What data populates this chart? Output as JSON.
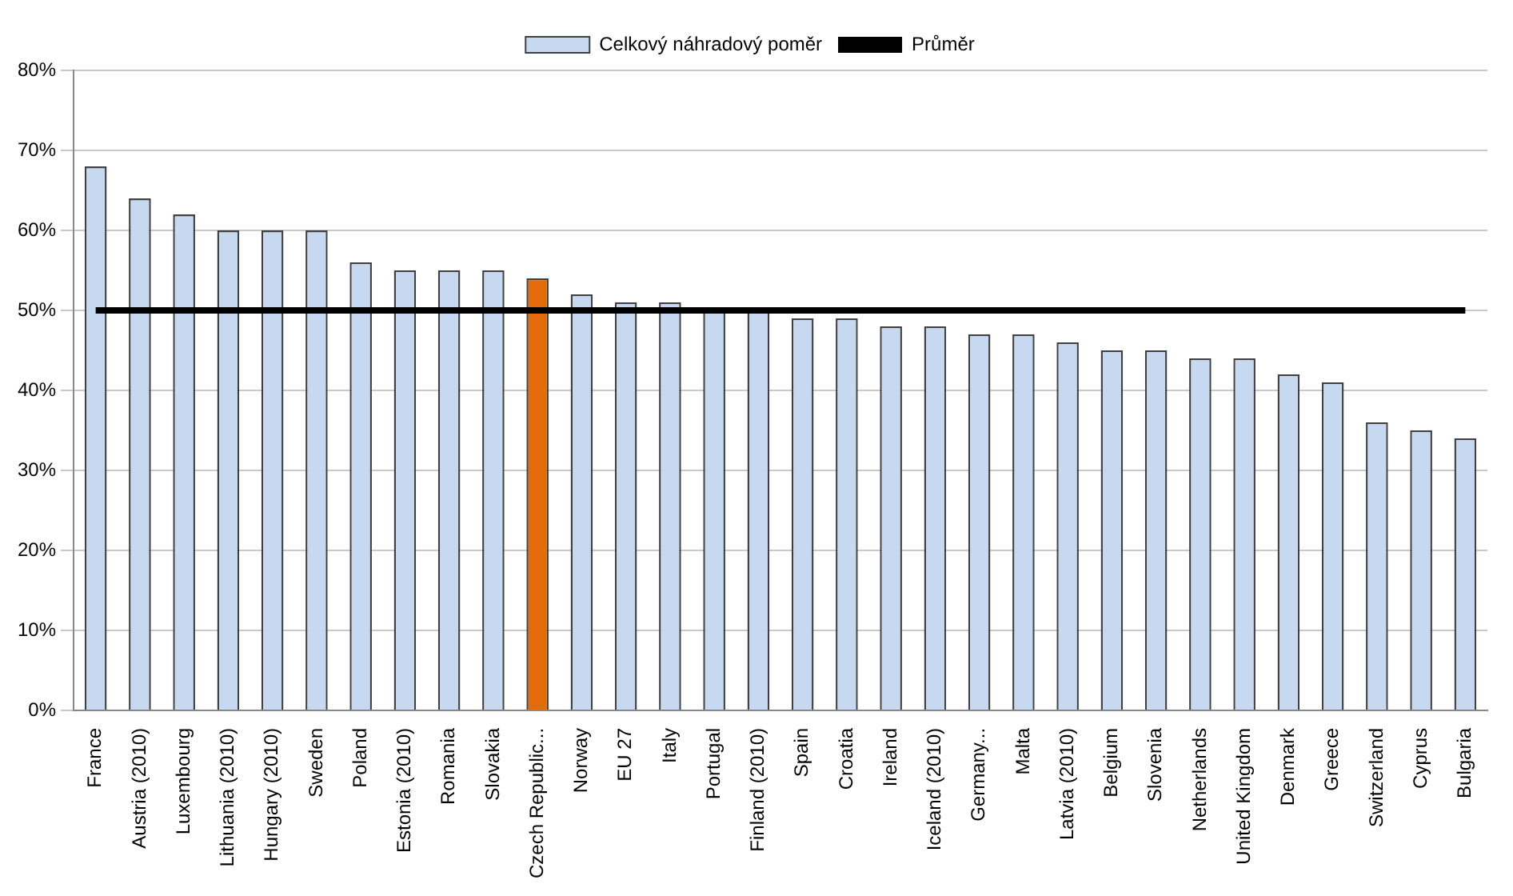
{
  "chart_data": {
    "type": "bar",
    "categories": [
      "France",
      "Austria (2010)",
      "Luxembourg",
      "Lithuania (2010)",
      "Hungary (2010)",
      "Sweden",
      "Poland",
      "Estonia (2010)",
      "Romania",
      "Slovakia",
      "Czech Republic...",
      "Norway",
      "EU 27",
      "Italy",
      "Portugal",
      "Finland (2010)",
      "Spain",
      "Croatia",
      "Ireland",
      "Iceland (2010)",
      "Germany...",
      "Malta",
      "Latvia (2010)",
      "Belgium",
      "Slovenia",
      "Netherlands",
      "United Kingdom",
      "Denmark",
      "Greece",
      "Switzerland",
      "Cyprus",
      "Bulgaria"
    ],
    "series": [
      {
        "name": "Celkový náhradový poměr",
        "color": "#c6d9f1",
        "colors": [
          "#c6d9f1",
          "#c6d9f1",
          "#c6d9f1",
          "#c6d9f1",
          "#c6d9f1",
          "#c6d9f1",
          "#c6d9f1",
          "#c6d9f1",
          "#c6d9f1",
          "#c6d9f1",
          "#e36c09",
          "#c6d9f1",
          "#c6d9f1",
          "#c6d9f1",
          "#c6d9f1",
          "#c6d9f1",
          "#c6d9f1",
          "#c6d9f1",
          "#c6d9f1",
          "#c6d9f1",
          "#c6d9f1",
          "#c6d9f1",
          "#c6d9f1",
          "#c6d9f1",
          "#c6d9f1",
          "#c6d9f1",
          "#c6d9f1",
          "#c6d9f1",
          "#c6d9f1",
          "#c6d9f1",
          "#c6d9f1",
          "#c6d9f1"
        ],
        "values": [
          68,
          64,
          62,
          60,
          60,
          60,
          56,
          55,
          55,
          55,
          54,
          52,
          51,
          51,
          50,
          50,
          49,
          49,
          48,
          48,
          47,
          47,
          46,
          45,
          45,
          44,
          44,
          42,
          41,
          36,
          35,
          34
        ]
      },
      {
        "name": "Průměr",
        "type": "line",
        "color": "#000000",
        "values": [
          50,
          50,
          50,
          50,
          50,
          50,
          50,
          50,
          50,
          50,
          50,
          50,
          50,
          50,
          50,
          50,
          50,
          50,
          50,
          50,
          50,
          50,
          50,
          50,
          50,
          50,
          50,
          50,
          50,
          50,
          50,
          50
        ]
      }
    ],
    "ylim": [
      0,
      80
    ],
    "yticks": [
      {
        "value": 0,
        "label": "0%"
      },
      {
        "value": 10,
        "label": "10%"
      },
      {
        "value": 20,
        "label": "20%"
      },
      {
        "value": 30,
        "label": "30%"
      },
      {
        "value": 40,
        "label": "40%"
      },
      {
        "value": 50,
        "label": "50%"
      },
      {
        "value": 60,
        "label": "60%"
      },
      {
        "value": 70,
        "label": "70%"
      },
      {
        "value": 80,
        "label": "80%"
      }
    ],
    "grid": "y",
    "legend": "top",
    "marker": "none",
    "line_style": "solid"
  }
}
